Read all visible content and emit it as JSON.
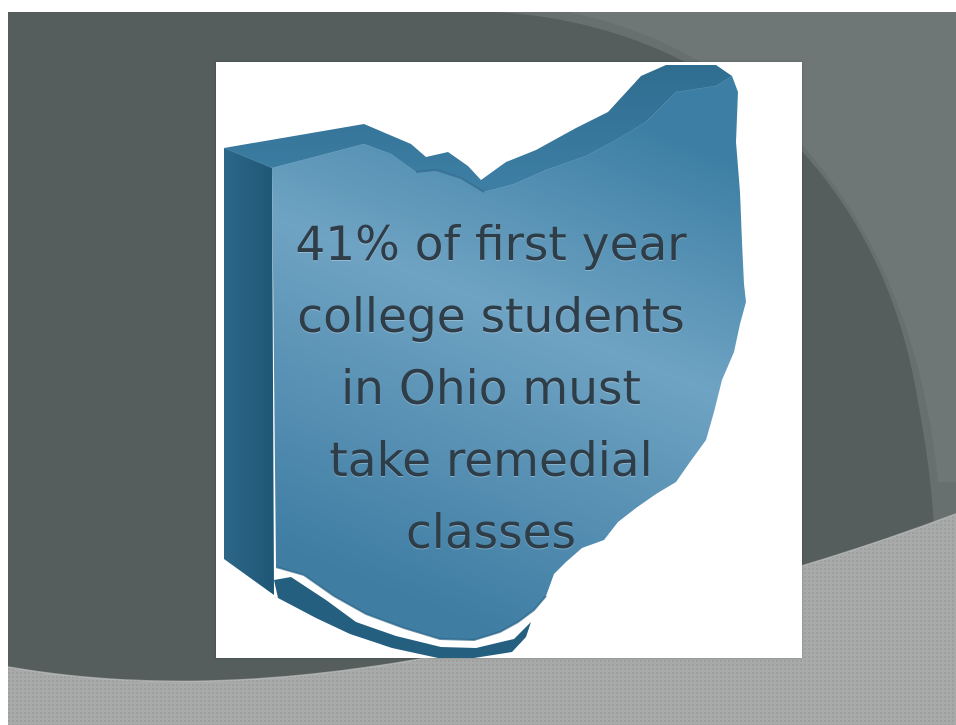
{
  "slide": {
    "statement": {
      "lines": [
        "41% of first year",
        "college students",
        "in Ohio must",
        "take remedial",
        "classes"
      ]
    }
  }
}
